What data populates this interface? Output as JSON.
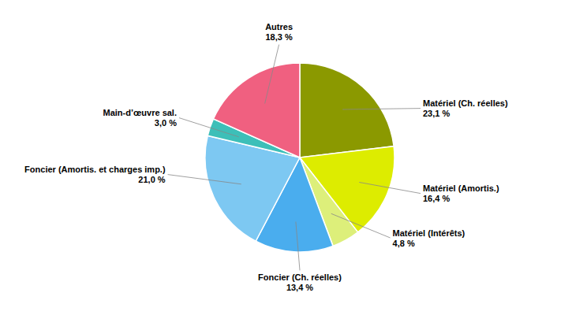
{
  "chart_data": {
    "type": "pie",
    "categories": [
      "Matériel (Ch. réelles)",
      "Matériel (Amortis.)",
      "Matériel (Intérêts)",
      "Foncier (Ch. réelles)",
      "Foncier (Amortis. et charges imp.)",
      "Main-d’œuvre sal.",
      "Autres"
    ],
    "values": [
      23.1,
      16.4,
      4.8,
      13.4,
      21.0,
      3.0,
      18.3
    ],
    "value_labels": [
      "23,1 %",
      "16,4 %",
      "4,8 %",
      "13,4 %",
      "21,0 %",
      "3,0 %",
      "18,3 %"
    ],
    "colors": [
      "#8B9900",
      "#DDEC00",
      "#DDEF7A",
      "#4AADEE",
      "#7DC8F2",
      "#3DBFB8",
      "#F06080"
    ]
  }
}
